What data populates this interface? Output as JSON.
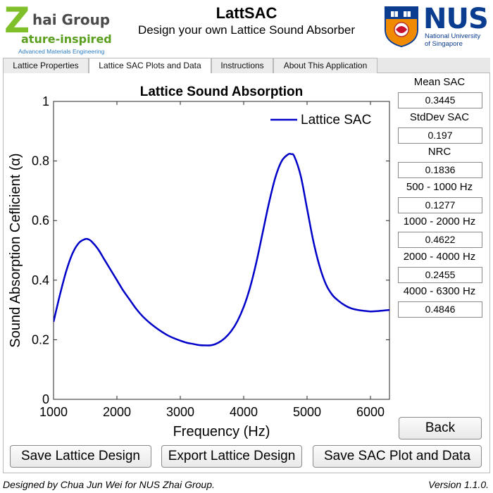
{
  "header": {
    "app_title": "LattSAC",
    "subtitle": "Design your own Lattice Sound Absorber",
    "left_logo": {
      "z_letter": "Z",
      "hai_group": "hai Group",
      "nature": "ature-inspired",
      "tagline": "Advanced Materials Engineering"
    },
    "right_logo": {
      "name": "NUS",
      "line1": "National University",
      "line2": "of Singapore",
      "crest_icon": "nus-crest-icon"
    }
  },
  "tabs": [
    {
      "label": "Lattice Properties",
      "active": false
    },
    {
      "label": "Lattice SAC Plots and Data",
      "active": true
    },
    {
      "label": "Instructions",
      "active": false
    },
    {
      "label": "About This Application",
      "active": false
    }
  ],
  "stats": [
    {
      "label": "Mean SAC",
      "value": "0.3445"
    },
    {
      "label": "StdDev SAC",
      "value": "0.197"
    },
    {
      "label": "NRC",
      "value": "0.1836"
    },
    {
      "label": "500 - 1000 Hz",
      "value": "0.1277"
    },
    {
      "label": "1000 - 2000 Hz",
      "value": "0.4622"
    },
    {
      "label": "2000 - 4000 Hz",
      "value": "0.2455"
    },
    {
      "label": "4000 - 6300 Hz",
      "value": "0.4846"
    }
  ],
  "buttons": {
    "back": "Back",
    "save_design": "Save Lattice Design",
    "export_design": "Export Lattice Design",
    "save_plot": "Save SAC Plot and Data"
  },
  "footer": {
    "credit": "Designed by Chua Jun Wei for NUS Zhai Group.",
    "version": "Version 1.1.0."
  },
  "chart_data": {
    "type": "line",
    "title": "Lattice Sound Absorption",
    "xlabel": "Frequency (Hz)",
    "ylabel": "Sound  Absorption  Ceflicient  (α)",
    "xlim": [
      1000,
      6300
    ],
    "ylim": [
      0,
      1
    ],
    "xticks": [
      "1000",
      "2000",
      "3000",
      "4000",
      "5000",
      "6000"
    ],
    "yticks": [
      "0",
      "0.2",
      "0.4",
      "0.6",
      "0.8",
      "1"
    ],
    "grid": false,
    "legend_position": "top-right",
    "color": "#0000c8",
    "series": [
      {
        "name": "Lattice SAC",
        "x": [
          1000,
          1100,
          1200,
          1300,
          1400,
          1500,
          1550,
          1600,
          1700,
          1800,
          1900,
          2000,
          2100,
          2200,
          2300,
          2400,
          2500,
          2600,
          2700,
          2800,
          2900,
          3000,
          3100,
          3200,
          3300,
          3400,
          3500,
          3600,
          3700,
          3800,
          3900,
          4000,
          4100,
          4200,
          4300,
          4400,
          4500,
          4600,
          4700,
          4750,
          4800,
          4900,
          5000,
          5100,
          5200,
          5300,
          5400,
          5500,
          5600,
          5700,
          5800,
          5900,
          6000,
          6100,
          6200,
          6300
        ],
        "y": [
          0.26,
          0.35,
          0.43,
          0.49,
          0.525,
          0.538,
          0.537,
          0.53,
          0.505,
          0.47,
          0.435,
          0.4,
          0.365,
          0.335,
          0.305,
          0.28,
          0.26,
          0.243,
          0.228,
          0.215,
          0.205,
          0.197,
          0.19,
          0.186,
          0.182,
          0.181,
          0.182,
          0.19,
          0.205,
          0.228,
          0.262,
          0.31,
          0.375,
          0.46,
          0.56,
          0.66,
          0.745,
          0.8,
          0.822,
          0.823,
          0.815,
          0.75,
          0.64,
          0.53,
          0.445,
          0.385,
          0.35,
          0.33,
          0.315,
          0.305,
          0.3,
          0.297,
          0.295,
          0.296,
          0.298,
          0.3
        ]
      }
    ]
  }
}
